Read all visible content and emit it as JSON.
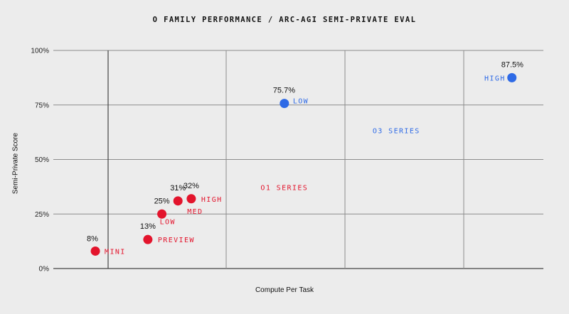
{
  "chart_data": {
    "type": "scatter",
    "title": "O FAMILY PERFORMANCE / ARC-AGI SEMI-PRIVATE EVAL",
    "xlabel": "Compute Per Task",
    "ylabel": "Semi-Private Score",
    "ylim": [
      0,
      100
    ],
    "yticks": [
      {
        "value": 0,
        "label": "0%"
      },
      {
        "value": 25,
        "label": "25%"
      },
      {
        "value": 50,
        "label": "50%"
      },
      {
        "value": 75,
        "label": "75%"
      },
      {
        "value": 100,
        "label": "100%"
      }
    ],
    "x_scale": "unlabeled",
    "grid": true,
    "series": [
      {
        "name": "O1 SERIES",
        "color": "#e3142c",
        "points": [
          {
            "label": "MINI",
            "value_label": "8%",
            "x": 0.6,
            "y": 8
          },
          {
            "label": "PREVIEW",
            "value_label": "13%",
            "x": 1.35,
            "y": 13.3
          },
          {
            "label": "LOW",
            "value_label": "25%",
            "x": 1.55,
            "y": 25
          },
          {
            "label": "MED",
            "value_label": "31%",
            "x": 1.78,
            "y": 31
          },
          {
            "label": "HIGH",
            "value_label": "32%",
            "x": 1.97,
            "y": 32
          }
        ]
      },
      {
        "name": "O3 SERIES",
        "color": "#2e6ae6",
        "points": [
          {
            "label": "LOW",
            "value_label": "75.7%",
            "x": 3.3,
            "y": 75.7
          },
          {
            "label": "HIGH",
            "value_label": "87.5%",
            "x": 6.55,
            "y": 87.5
          }
        ]
      }
    ],
    "region_labels": [
      {
        "text": "O1 SERIES",
        "color": "#e3142c",
        "x": 3.3,
        "y": 36
      },
      {
        "text": "O3 SERIES",
        "color": "#2e6ae6",
        "x": 4.9,
        "y": 62
      }
    ]
  }
}
